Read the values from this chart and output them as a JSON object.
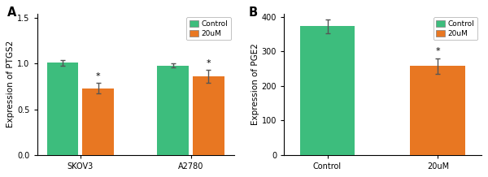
{
  "panel_A": {
    "groups": [
      "SKOV3",
      "A2780"
    ],
    "control_values": [
      1.01,
      0.98
    ],
    "treatment_values": [
      0.73,
      0.86
    ],
    "control_errors": [
      0.03,
      0.02
    ],
    "treatment_errors": [
      0.06,
      0.07
    ],
    "ylabel": "Expression of PTGS2",
    "ylim": [
      0,
      1.55
    ],
    "yticks": [
      0.0,
      0.5,
      1.0,
      1.5
    ],
    "label": "A",
    "group_positions": [
      0.22,
      0.78
    ],
    "bar_width": 0.16
  },
  "panel_B": {
    "categories": [
      "Control",
      "20uM"
    ],
    "values": [
      373,
      258
    ],
    "errors": [
      20,
      22
    ],
    "ylabel": "Expression of PGE2",
    "ylim": [
      0,
      410
    ],
    "yticks": [
      0,
      100,
      200,
      300,
      400
    ],
    "label": "B",
    "positions": [
      0.22,
      0.78
    ],
    "bar_width": 0.28
  },
  "colors": {
    "control": "#3DBD7D",
    "treatment": "#E87722"
  },
  "legend": {
    "control_label": "Control",
    "treatment_label": "20uM"
  },
  "error_kw": {
    "elinewidth": 1.0,
    "capsize": 2.5,
    "ecolor": "#555555"
  },
  "font_size": 7,
  "label_font_size": 7.5,
  "tick_font_size": 7,
  "axis_label_fontsize": 7.5
}
